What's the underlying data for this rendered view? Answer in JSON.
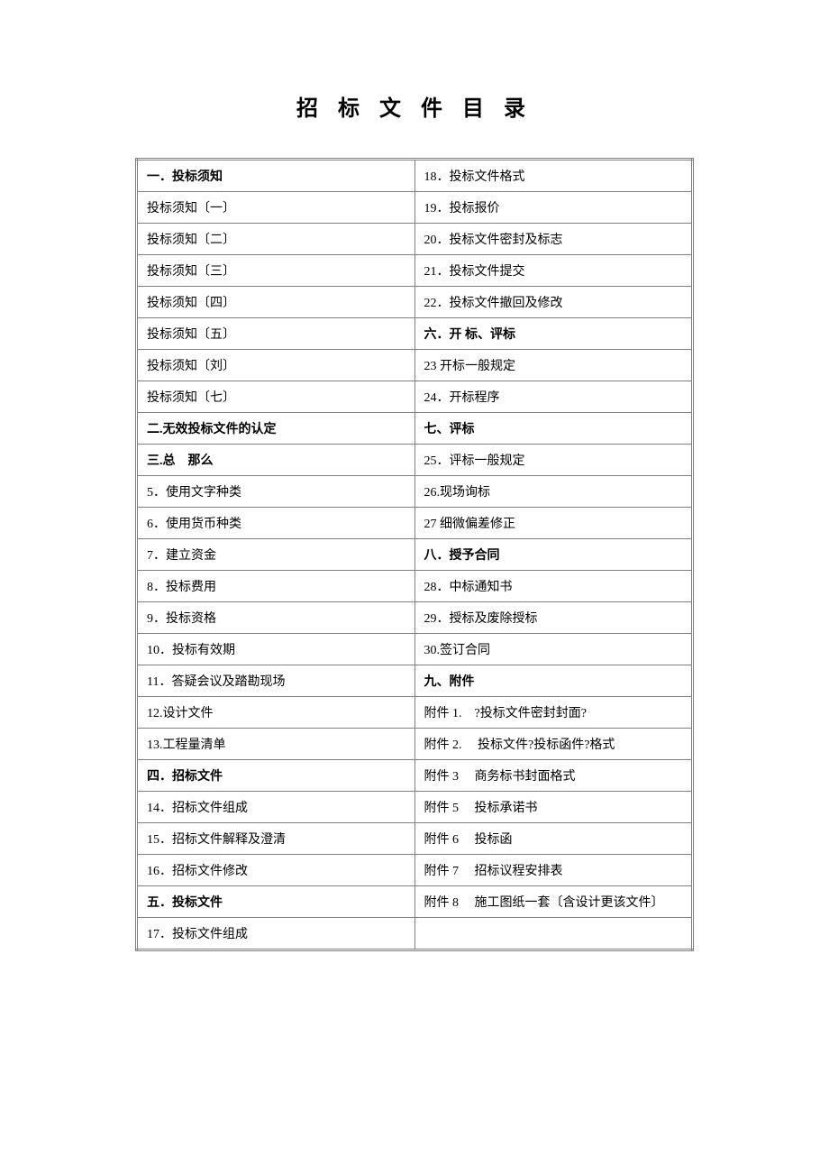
{
  "title": "招 标 文 件 目 录",
  "table": {
    "border_color": "#808080",
    "text_color": "#000000",
    "background_color": "#ffffff",
    "font_size": 14,
    "title_font_size": 24,
    "rows": [
      {
        "left": {
          "text": "一．投标须知",
          "bold": true
        },
        "right": {
          "text": "18．投标文件格式",
          "bold": false
        }
      },
      {
        "left": {
          "text": "投标须知〔一〕",
          "bold": false
        },
        "right": {
          "text": "19．投标报价",
          "bold": false
        }
      },
      {
        "left": {
          "text": "投标须知〔二〕",
          "bold": false
        },
        "right": {
          "text": "20．投标文件密封及标志",
          "bold": false
        }
      },
      {
        "left": {
          "text": "投标须知〔三〕",
          "bold": false
        },
        "right": {
          "text": "21．投标文件提交",
          "bold": false
        }
      },
      {
        "left": {
          "text": "投标须知〔四〕",
          "bold": false
        },
        "right": {
          "text": "22．投标文件撤回及修改",
          "bold": false
        }
      },
      {
        "left": {
          "text": "投标须知〔五〕",
          "bold": false
        },
        "right": {
          "text": "六．开 标、评标",
          "bold": true
        }
      },
      {
        "left": {
          "text": "投标须知〔刘〕",
          "bold": false
        },
        "right": {
          "text": "23 开标一般规定",
          "bold": false
        }
      },
      {
        "left": {
          "text": "投标须知〔七〕",
          "bold": false
        },
        "right": {
          "text": "24．开标程序",
          "bold": false
        }
      },
      {
        "left": {
          "text": "二.无效投标文件的认定",
          "bold": true
        },
        "right": {
          "text": "七、评标",
          "bold": true
        }
      },
      {
        "left": {
          "text": "三.总　那么",
          "bold": true
        },
        "right": {
          "text": "25．评标一般规定",
          "bold": false
        }
      },
      {
        "left": {
          "text": "5．使用文字种类",
          "bold": false
        },
        "right": {
          "text": "26.现场询标",
          "bold": false
        }
      },
      {
        "left": {
          "text": "6．使用货币种类",
          "bold": false
        },
        "right": {
          "text": "27 细微偏差修正",
          "bold": false
        }
      },
      {
        "left": {
          "text": "7．建立资金",
          "bold": false
        },
        "right": {
          "text": "八．授予合同",
          "bold": true
        }
      },
      {
        "left": {
          "text": "8．投标费用",
          "bold": false
        },
        "right": {
          "text": "28．中标通知书",
          "bold": false
        }
      },
      {
        "left": {
          "text": "9．投标资格",
          "bold": false
        },
        "right": {
          "text": "29．授标及废除授标",
          "bold": false
        }
      },
      {
        "left": {
          "text": "10．投标有效期",
          "bold": false
        },
        "right": {
          "text": "30.签订合同",
          "bold": false
        }
      },
      {
        "left": {
          "text": "11．答疑会议及踏勘现场",
          "bold": false
        },
        "right": {
          "text": "九、附件",
          "bold": true
        }
      },
      {
        "left": {
          "text": "12.设计文件",
          "bold": false
        },
        "right": {
          "text": "附件 1.　?投标文件密封封面?",
          "bold": false
        }
      },
      {
        "left": {
          "text": "13.工程量清单",
          "bold": false
        },
        "right": {
          "text": "附件 2.　 投标文件?投标函件?格式",
          "bold": false
        }
      },
      {
        "left": {
          "text": "四．招标文件",
          "bold": true
        },
        "right": {
          "text": "附件 3　 商务标书封面格式",
          "bold": false
        }
      },
      {
        "left": {
          "text": "14．招标文件组成",
          "bold": false
        },
        "right": {
          "text": "附件 5　 投标承诺书",
          "bold": false
        }
      },
      {
        "left": {
          "text": "15．招标文件解释及澄清",
          "bold": false
        },
        "right": {
          "text": "附件 6　 投标函",
          "bold": false
        }
      },
      {
        "left": {
          "text": "16．招标文件修改",
          "bold": false
        },
        "right": {
          "text": "附件 7　 招标议程安排表",
          "bold": false
        }
      },
      {
        "left": {
          "text": "五．投标文件",
          "bold": true
        },
        "right": {
          "text": "附件 8　 施工图纸一套〔含设计更该文件〕",
          "bold": false
        }
      },
      {
        "left": {
          "text": "17．投标文件组成",
          "bold": false
        },
        "right": {
          "text": "",
          "bold": false
        }
      }
    ]
  }
}
